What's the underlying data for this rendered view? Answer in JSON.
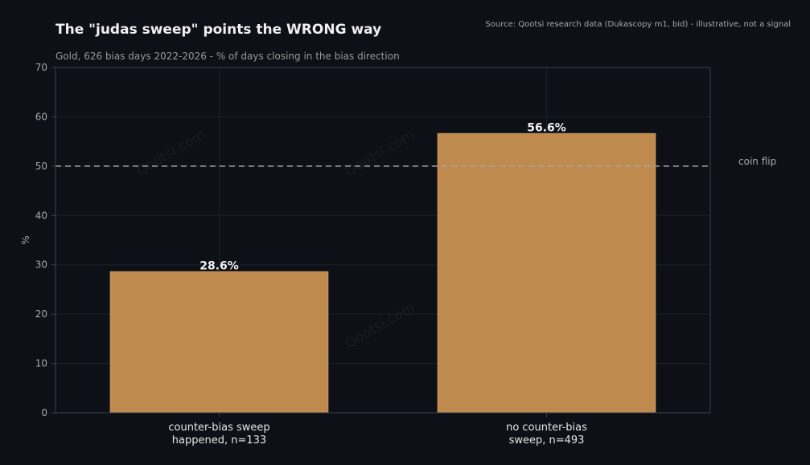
{
  "colors": {
    "background": "#0d1017",
    "bar": "#bf8a4d",
    "grid": "#1c2028",
    "axis": "#3a3f4a",
    "reference_line": "#a8a8a8"
  },
  "chart_data": {
    "type": "bar",
    "title": "The \"judas sweep\" points the WRONG way",
    "subtitle": "Gold, 626 bias days 2022-2026 - % of days closing in the bias direction",
    "source": "Source: Qootsi research data (Dukascopy m1, bid) - illustrative, not a signal",
    "ylabel": "%",
    "xlabel": "",
    "ylim": [
      0,
      70
    ],
    "yticks": [
      0,
      10,
      20,
      30,
      40,
      50,
      60,
      70
    ],
    "grid": true,
    "categories": [
      [
        "counter-bias sweep",
        "happened, n=133"
      ],
      [
        "no counter-bias",
        "sweep, n=493"
      ]
    ],
    "values": [
      28.6,
      56.6
    ],
    "value_labels": [
      "28.6%",
      "56.6%"
    ],
    "reference_line": {
      "value": 50,
      "label": "coin flip"
    },
    "watermark": "Qootsi.com"
  }
}
